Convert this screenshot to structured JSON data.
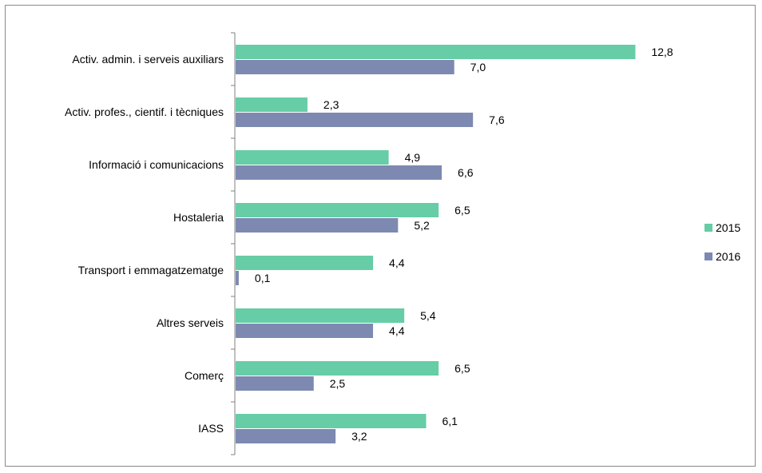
{
  "chart_data": {
    "type": "bar",
    "orientation": "horizontal",
    "categories": [
      "Activ. admin. i serveis auxiliars",
      "Activ. profes., cientif. i tècniques",
      "Informació i comunicacions",
      "Hostaleria",
      "Transport i emmagatzematge",
      "Altres serveis",
      "Comerç",
      "IASS"
    ],
    "series": [
      {
        "name": "2015",
        "values": [
          12.8,
          2.3,
          4.9,
          6.5,
          4.4,
          5.4,
          6.5,
          6.1
        ],
        "labels": [
          "12,8",
          "2,3",
          "4,9",
          "6,5",
          "4,4",
          "5,4",
          "6,5",
          "6,1"
        ]
      },
      {
        "name": "2016",
        "values": [
          7.0,
          7.6,
          6.6,
          5.2,
          0.1,
          4.4,
          2.5,
          3.2
        ],
        "labels": [
          "7,0",
          "7,6",
          "6,6",
          "5,2",
          "0,1",
          "4,4",
          "2,5",
          "3,2"
        ]
      }
    ],
    "xlim": [
      0,
      12.8
    ],
    "grid": false,
    "legend_position": "right",
    "colors": {
      "2015": "#66cda6",
      "2016": "#7d89b1"
    }
  }
}
